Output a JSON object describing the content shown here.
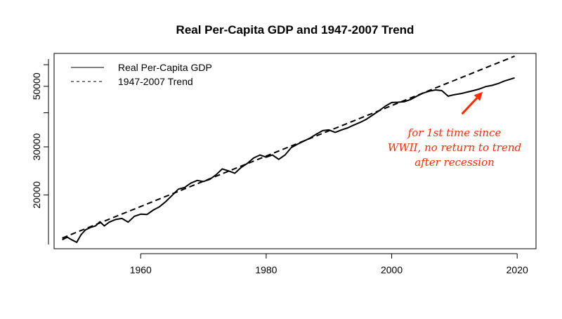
{
  "chart_data": {
    "type": "line",
    "title": "Real Per-Capita GDP and 1947-2007 Trend",
    "xlabel": "",
    "ylabel": "",
    "xlim": [
      1946.2,
      2023.0
    ],
    "ylim": [
      12700,
      66000
    ],
    "y_scale": "log",
    "x_ticks": [
      1960,
      1980,
      2000,
      2020
    ],
    "y_ticks": [
      20000,
      30000,
      50000
    ],
    "legend": {
      "position": "top-left",
      "entries": [
        {
          "label": "Real Per-Capita GDP",
          "line": "solid"
        },
        {
          "label": "1947-2007 Trend",
          "line": "dashed"
        }
      ]
    },
    "series": [
      {
        "name": "Real Per-Capita GDP",
        "line": "solid",
        "color": "#000000",
        "points": [
          [
            1947.5,
            13700
          ],
          [
            1948.3,
            14000
          ],
          [
            1949.0,
            13700
          ],
          [
            1949.8,
            13400
          ],
          [
            1950.5,
            14300
          ],
          [
            1951.2,
            14900
          ],
          [
            1952.0,
            15200
          ],
          [
            1952.8,
            15400
          ],
          [
            1953.5,
            15950
          ],
          [
            1954.2,
            15400
          ],
          [
            1955.0,
            15900
          ],
          [
            1956.0,
            16250
          ],
          [
            1957.0,
            16400
          ],
          [
            1958.0,
            15900
          ],
          [
            1959.0,
            16700
          ],
          [
            1960.0,
            17000
          ],
          [
            1961.0,
            16950
          ],
          [
            1962.0,
            17600
          ],
          [
            1963.0,
            18100
          ],
          [
            1964.0,
            18900
          ],
          [
            1965.0,
            19900
          ],
          [
            1966.0,
            21000
          ],
          [
            1967.0,
            21300
          ],
          [
            1968.0,
            22100
          ],
          [
            1969.0,
            22600
          ],
          [
            1970.0,
            22400
          ],
          [
            1971.0,
            22800
          ],
          [
            1972.0,
            23700
          ],
          [
            1973.0,
            24900
          ],
          [
            1974.0,
            24500
          ],
          [
            1975.0,
            24000
          ],
          [
            1976.0,
            25200
          ],
          [
            1977.0,
            26100
          ],
          [
            1978.0,
            27300
          ],
          [
            1979.0,
            28000
          ],
          [
            1980.0,
            27500
          ],
          [
            1981.0,
            28000
          ],
          [
            1982.0,
            27000
          ],
          [
            1983.0,
            28000
          ],
          [
            1984.0,
            29800
          ],
          [
            1985.0,
            30700
          ],
          [
            1986.0,
            31500
          ],
          [
            1987.0,
            32300
          ],
          [
            1988.0,
            33400
          ],
          [
            1989.0,
            34400
          ],
          [
            1990.0,
            34600
          ],
          [
            1991.0,
            33900
          ],
          [
            1992.0,
            34600
          ],
          [
            1993.0,
            35200
          ],
          [
            1994.0,
            36100
          ],
          [
            1995.0,
            36900
          ],
          [
            1996.0,
            37900
          ],
          [
            1997.0,
            39300
          ],
          [
            1998.0,
            40700
          ],
          [
            1999.0,
            42300
          ],
          [
            2000.0,
            43600
          ],
          [
            2001.0,
            43700
          ],
          [
            2002.0,
            43900
          ],
          [
            2003.0,
            44700
          ],
          [
            2004.0,
            46000
          ],
          [
            2005.0,
            47200
          ],
          [
            2006.0,
            48000
          ],
          [
            2007.0,
            48500
          ],
          [
            2008.0,
            48200
          ],
          [
            2009.0,
            46000
          ],
          [
            2010.0,
            46600
          ],
          [
            2011.0,
            47000
          ],
          [
            2012.0,
            47600
          ],
          [
            2013.0,
            48200
          ],
          [
            2014.0,
            48900
          ],
          [
            2015.0,
            49900
          ],
          [
            2016.0,
            50400
          ],
          [
            2017.0,
            51200
          ],
          [
            2018.0,
            52300
          ],
          [
            2019.0,
            53200
          ],
          [
            2019.6,
            53700
          ]
        ]
      },
      {
        "name": "1947-2007 Trend",
        "line": "dashed",
        "color": "#000000",
        "points": [
          [
            1947.5,
            13900
          ],
          [
            2019.6,
            64500
          ]
        ]
      }
    ],
    "annotations": [
      {
        "lines": [
          "for 1st time since",
          "WWII, no return to trend",
          "after recession"
        ],
        "color": "#ff2a00",
        "arrow_from": [
          2011.2,
          39600
        ],
        "arrow_to": [
          2014.5,
          47700
        ]
      }
    ]
  }
}
